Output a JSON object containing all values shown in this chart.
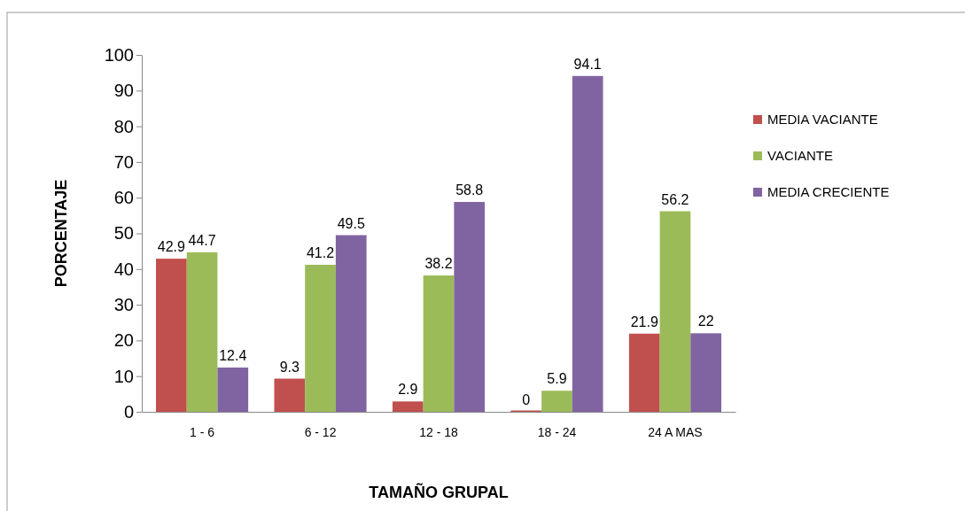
{
  "chart_data": {
    "type": "bar",
    "xlabel": "TAMAÑO GRUPAL",
    "ylabel": "PORCENTAJE",
    "categories": [
      "1 - 6",
      "6 - 12",
      "12 - 18",
      "18 - 24",
      "24 A MAS"
    ],
    "series": [
      {
        "name": "MEDIA VACIANTE",
        "color": "#c0504d",
        "values": [
          42.9,
          9.3,
          2.9,
          0,
          21.9
        ]
      },
      {
        "name": "VACIANTE",
        "color": "#9bbb59",
        "values": [
          44.7,
          41.2,
          38.2,
          5.9,
          56.2
        ]
      },
      {
        "name": "MEDIA CRECIENTE",
        "color": "#8064a2",
        "values": [
          12.4,
          49.5,
          58.8,
          94.1,
          22
        ]
      }
    ],
    "ylim": [
      0,
      100
    ],
    "yticks": [
      0,
      10,
      20,
      30,
      40,
      50,
      60,
      70,
      80,
      90,
      100
    ],
    "grid": false,
    "legend": "right",
    "data_labels": true
  }
}
